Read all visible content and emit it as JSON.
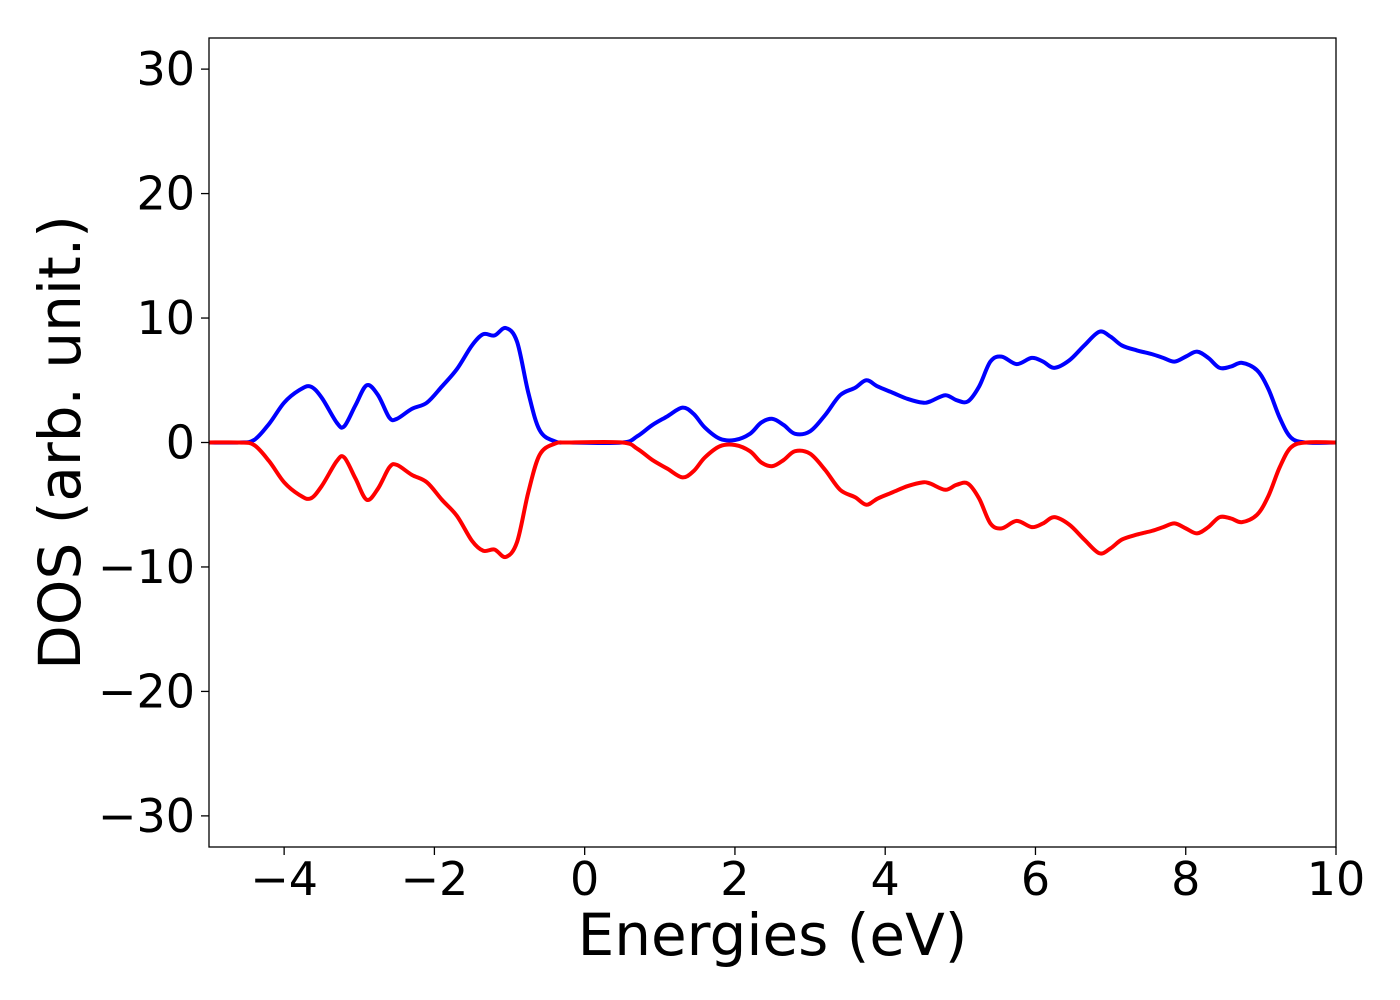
{
  "chart_data": {
    "type": "line",
    "xlabel": "Energies (eV)",
    "ylabel": "DOS (arb. unit.)",
    "xlim": [
      -5,
      10
    ],
    "ylim": [
      -32.5,
      32.5
    ],
    "grid": false,
    "x_ticks": [
      {
        "value": -4,
        "label": "−4"
      },
      {
        "value": -2,
        "label": "−2"
      },
      {
        "value": 0,
        "label": "0"
      },
      {
        "value": 2,
        "label": "2"
      },
      {
        "value": 4,
        "label": "4"
      },
      {
        "value": 6,
        "label": "6"
      },
      {
        "value": 8,
        "label": "8"
      },
      {
        "value": 10,
        "label": "10"
      }
    ],
    "y_ticks": [
      {
        "value": -30,
        "label": "−30"
      },
      {
        "value": -20,
        "label": "−20"
      },
      {
        "value": -10,
        "label": "−10"
      },
      {
        "value": 0,
        "label": "0"
      },
      {
        "value": 10,
        "label": "10"
      },
      {
        "value": 20,
        "label": "20"
      },
      {
        "value": 30,
        "label": "30"
      }
    ],
    "series": [
      {
        "color": "#0000ff",
        "points": [
          [
            -5.0,
            0.0
          ],
          [
            -4.6,
            0.0
          ],
          [
            -4.4,
            0.2
          ],
          [
            -4.2,
            1.5
          ],
          [
            -4.0,
            3.2
          ],
          [
            -3.8,
            4.2
          ],
          [
            -3.65,
            4.5
          ],
          [
            -3.5,
            3.6
          ],
          [
            -3.3,
            1.6
          ],
          [
            -3.2,
            1.3
          ],
          [
            -3.05,
            3.0
          ],
          [
            -2.9,
            4.6
          ],
          [
            -2.75,
            3.8
          ],
          [
            -2.6,
            2.0
          ],
          [
            -2.5,
            1.9
          ],
          [
            -2.3,
            2.7
          ],
          [
            -2.1,
            3.2
          ],
          [
            -1.9,
            4.5
          ],
          [
            -1.7,
            5.9
          ],
          [
            -1.5,
            7.8
          ],
          [
            -1.35,
            8.7
          ],
          [
            -1.2,
            8.6
          ],
          [
            -1.05,
            9.2
          ],
          [
            -0.9,
            8.1
          ],
          [
            -0.75,
            4.0
          ],
          [
            -0.6,
            1.0
          ],
          [
            -0.4,
            0.1
          ],
          [
            -0.2,
            0.0
          ],
          [
            0.5,
            0.0
          ],
          [
            0.7,
            0.5
          ],
          [
            0.9,
            1.4
          ],
          [
            1.1,
            2.1
          ],
          [
            1.3,
            2.8
          ],
          [
            1.45,
            2.3
          ],
          [
            1.6,
            1.2
          ],
          [
            1.8,
            0.3
          ],
          [
            2.0,
            0.2
          ],
          [
            2.2,
            0.7
          ],
          [
            2.35,
            1.6
          ],
          [
            2.5,
            1.9
          ],
          [
            2.65,
            1.4
          ],
          [
            2.8,
            0.7
          ],
          [
            3.0,
            0.9
          ],
          [
            3.2,
            2.2
          ],
          [
            3.4,
            3.8
          ],
          [
            3.6,
            4.4
          ],
          [
            3.75,
            5.0
          ],
          [
            3.9,
            4.5
          ],
          [
            4.1,
            4.0
          ],
          [
            4.3,
            3.5
          ],
          [
            4.5,
            3.2
          ],
          [
            4.6,
            3.3
          ],
          [
            4.8,
            3.8
          ],
          [
            4.95,
            3.4
          ],
          [
            5.1,
            3.3
          ],
          [
            5.25,
            4.5
          ],
          [
            5.4,
            6.5
          ],
          [
            5.55,
            6.9
          ],
          [
            5.75,
            6.3
          ],
          [
            5.95,
            6.8
          ],
          [
            6.1,
            6.5
          ],
          [
            6.25,
            6.0
          ],
          [
            6.45,
            6.6
          ],
          [
            6.65,
            7.8
          ],
          [
            6.85,
            8.9
          ],
          [
            7.0,
            8.5
          ],
          [
            7.15,
            7.8
          ],
          [
            7.35,
            7.4
          ],
          [
            7.55,
            7.1
          ],
          [
            7.7,
            6.8
          ],
          [
            7.85,
            6.5
          ],
          [
            8.0,
            6.9
          ],
          [
            8.15,
            7.3
          ],
          [
            8.3,
            6.8
          ],
          [
            8.45,
            6.0
          ],
          [
            8.6,
            6.1
          ],
          [
            8.75,
            6.4
          ],
          [
            8.95,
            5.8
          ],
          [
            9.1,
            4.3
          ],
          [
            9.25,
            2.0
          ],
          [
            9.4,
            0.4
          ],
          [
            9.6,
            0.0
          ],
          [
            10.0,
            0.0
          ]
        ]
      },
      {
        "color": "#ff0000",
        "points": [
          [
            -5.0,
            0.0
          ],
          [
            -4.6,
            0.0
          ],
          [
            -4.4,
            -0.2
          ],
          [
            -4.2,
            -1.5
          ],
          [
            -4.0,
            -3.2
          ],
          [
            -3.8,
            -4.2
          ],
          [
            -3.65,
            -4.5
          ],
          [
            -3.5,
            -3.5
          ],
          [
            -3.3,
            -1.5
          ],
          [
            -3.2,
            -1.2
          ],
          [
            -3.05,
            -2.9
          ],
          [
            -2.9,
            -4.6
          ],
          [
            -2.75,
            -3.7
          ],
          [
            -2.6,
            -2.0
          ],
          [
            -2.5,
            -1.8
          ],
          [
            -2.3,
            -2.6
          ],
          [
            -2.1,
            -3.2
          ],
          [
            -1.9,
            -4.6
          ],
          [
            -1.7,
            -5.9
          ],
          [
            -1.5,
            -7.9
          ],
          [
            -1.35,
            -8.7
          ],
          [
            -1.2,
            -8.6
          ],
          [
            -1.05,
            -9.2
          ],
          [
            -0.9,
            -8.0
          ],
          [
            -0.75,
            -4.0
          ],
          [
            -0.6,
            -1.0
          ],
          [
            -0.4,
            -0.1
          ],
          [
            -0.2,
            0.0
          ],
          [
            0.5,
            0.0
          ],
          [
            0.7,
            -0.5
          ],
          [
            0.9,
            -1.4
          ],
          [
            1.1,
            -2.1
          ],
          [
            1.3,
            -2.8
          ],
          [
            1.45,
            -2.3
          ],
          [
            1.6,
            -1.2
          ],
          [
            1.8,
            -0.3
          ],
          [
            2.0,
            -0.2
          ],
          [
            2.2,
            -0.7
          ],
          [
            2.35,
            -1.6
          ],
          [
            2.5,
            -1.9
          ],
          [
            2.65,
            -1.4
          ],
          [
            2.8,
            -0.7
          ],
          [
            3.0,
            -0.9
          ],
          [
            3.2,
            -2.2
          ],
          [
            3.4,
            -3.8
          ],
          [
            3.6,
            -4.4
          ],
          [
            3.75,
            -5.0
          ],
          [
            3.9,
            -4.5
          ],
          [
            4.1,
            -4.0
          ],
          [
            4.3,
            -3.5
          ],
          [
            4.5,
            -3.2
          ],
          [
            4.6,
            -3.3
          ],
          [
            4.8,
            -3.8
          ],
          [
            4.95,
            -3.4
          ],
          [
            5.1,
            -3.3
          ],
          [
            5.25,
            -4.5
          ],
          [
            5.4,
            -6.5
          ],
          [
            5.55,
            -6.9
          ],
          [
            5.75,
            -6.3
          ],
          [
            5.95,
            -6.8
          ],
          [
            6.1,
            -6.5
          ],
          [
            6.25,
            -6.0
          ],
          [
            6.45,
            -6.6
          ],
          [
            6.65,
            -7.8
          ],
          [
            6.85,
            -8.9
          ],
          [
            7.0,
            -8.5
          ],
          [
            7.15,
            -7.8
          ],
          [
            7.35,
            -7.4
          ],
          [
            7.55,
            -7.1
          ],
          [
            7.7,
            -6.8
          ],
          [
            7.85,
            -6.5
          ],
          [
            8.0,
            -6.9
          ],
          [
            8.15,
            -7.3
          ],
          [
            8.3,
            -6.8
          ],
          [
            8.45,
            -6.0
          ],
          [
            8.6,
            -6.1
          ],
          [
            8.75,
            -6.4
          ],
          [
            8.95,
            -5.8
          ],
          [
            9.1,
            -4.3
          ],
          [
            9.25,
            -2.0
          ],
          [
            9.4,
            -0.4
          ],
          [
            9.6,
            0.0
          ],
          [
            10.0,
            0.0
          ]
        ]
      }
    ]
  }
}
